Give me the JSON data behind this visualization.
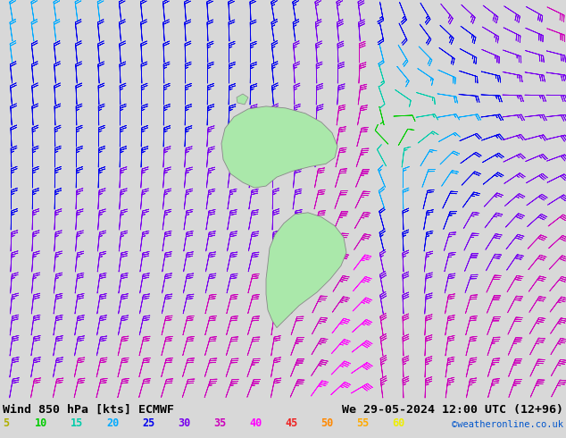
{
  "title_left": "Wind 850 hPa [kts] ECMWF",
  "title_right": "We 29-05-2024 12:00 UTC (12+96)",
  "copyright": "©weatheronline.co.uk",
  "legend_values": [
    5,
    10,
    15,
    20,
    25,
    30,
    35,
    40,
    45,
    50,
    55,
    60
  ],
  "legend_colors": [
    "#b0b000",
    "#00cc00",
    "#00ccaa",
    "#00aaff",
    "#0000ee",
    "#7700ee",
    "#cc00bb",
    "#ff00ff",
    "#ee2222",
    "#ff8800",
    "#ffaa00",
    "#eeee00"
  ],
  "background_color": "#d8d8d8",
  "fig_width": 6.34,
  "fig_height": 4.9,
  "dpi": 100,
  "grid_nx": 26,
  "grid_ny": 19
}
